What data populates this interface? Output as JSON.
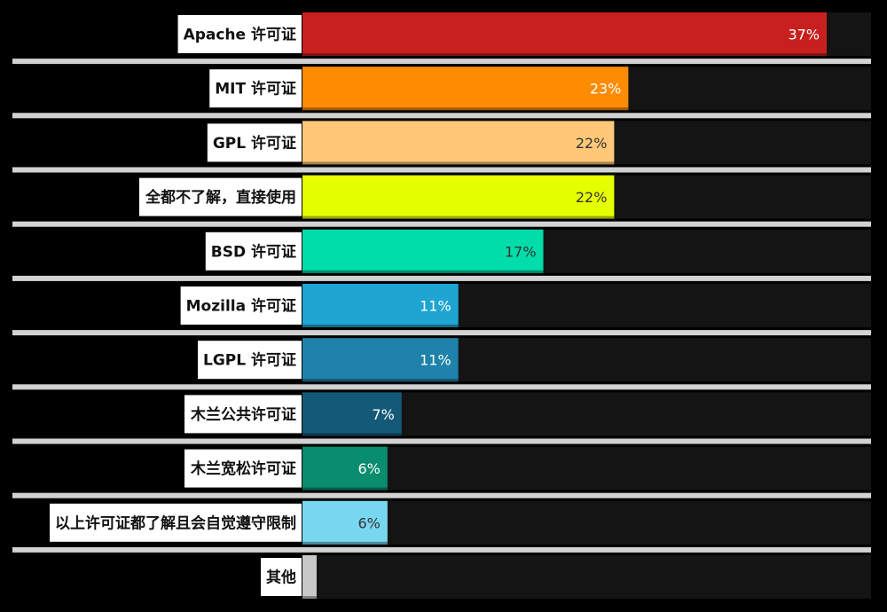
{
  "chart_data": {
    "type": "bar",
    "orientation": "horizontal",
    "unit": "%",
    "categories": [
      "Apache 许可证",
      "MIT 许可证",
      "GPL 许可证",
      "全都不了解，直接使用",
      "BSD 许可证",
      "Mozilla 许可证",
      "LGPL 许可证",
      "木兰公共许可证",
      "木兰宽松许可证",
      "以上许可证都了解且会自觉遵守限制",
      "其他"
    ],
    "values": [
      37,
      23,
      22,
      22,
      17,
      11,
      11,
      7,
      6,
      6,
      1
    ],
    "value_labels": [
      "37%",
      "23%",
      "22%",
      "22%",
      "17%",
      "11%",
      "11%",
      "7%",
      "6%",
      "6%",
      ""
    ],
    "bar_colors": [
      "#c8201e",
      "#ff8c00",
      "#ffc878",
      "#e6ff00",
      "#00dcaa",
      "#1ea5d2",
      "#1e82aa",
      "#145a78",
      "#0a8c6e",
      "#78d7f0",
      "#c8c8c8"
    ],
    "value_label_colors": [
      "#ffffff",
      "#ffffff",
      "#333333",
      "#333333",
      "#333333",
      "#ffffff",
      "#ffffff",
      "#ffffff",
      "#ffffff",
      "#333333",
      "#333333"
    ],
    "xlim": [
      0,
      40
    ],
    "title": "",
    "xlabel": "",
    "ylabel": "",
    "grid": false,
    "legend": "none"
  }
}
